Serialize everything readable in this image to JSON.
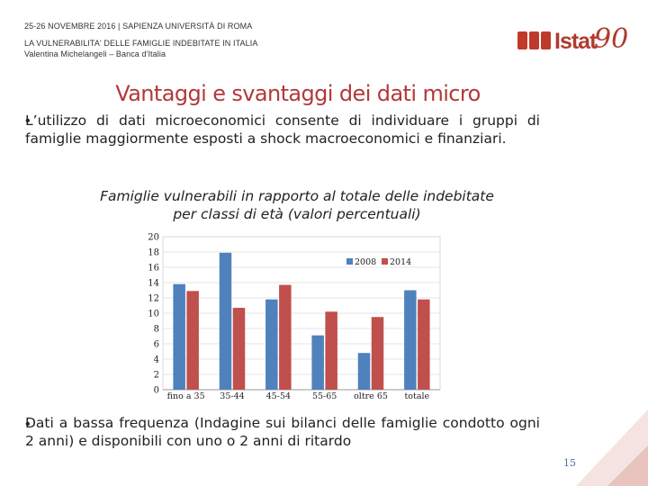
{
  "header": {
    "line1": "25-26 NOVEMBRE 2016 | SAPIENZA UNIVERSITÀ DI ROMA",
    "line2": "LA VULNERABILITA' DELLE FAMIGLIE INDEBITATE IN ITALIA",
    "line3": "Valentina Michelangeli – Banca d'Italia"
  },
  "logo": {
    "word": "Istat",
    "number": "90"
  },
  "slide": {
    "title": "Vantaggi e svantaggi  dei dati micro",
    "bullet1": "L’utilizzo di dati microeconomici consente di individuare i gruppi di famiglie maggiormente esposti a shock macroeconomici e finanziari.",
    "chart_title_line1": "Famiglie vulnerabili in rapporto al totale delle indebitate",
    "chart_title_line2": "per classi di età (valori percentuali)",
    "bullet2": "Dati a bassa frequenza (Indagine sui bilanci delle famiglie condotto ogni 2 anni) e disponibili con uno o 2 anni di ritardo",
    "bullet_symbol": "•",
    "page_number": "15"
  },
  "colors": {
    "series2008": "#4f81bd",
    "series2014": "#c0504d",
    "title": "#b2393a"
  },
  "chart_data": {
    "type": "bar",
    "title": "",
    "categories": [
      "fino a 35",
      "35-44",
      "45-54",
      "55-65",
      "oltre 65",
      "totale"
    ],
    "series": [
      {
        "name": "2008",
        "values": [
          13.8,
          17.9,
          11.8,
          7.1,
          4.8,
          13.0
        ]
      },
      {
        "name": "2014",
        "values": [
          12.9,
          10.7,
          13.7,
          10.2,
          9.5,
          11.8
        ]
      }
    ],
    "ylim": [
      0,
      20
    ],
    "yticks": [
      0,
      2,
      4,
      6,
      8,
      10,
      12,
      14,
      16,
      18,
      20
    ],
    "xlabel": "",
    "ylabel": "",
    "legend": "top-right",
    "grid": true
  }
}
